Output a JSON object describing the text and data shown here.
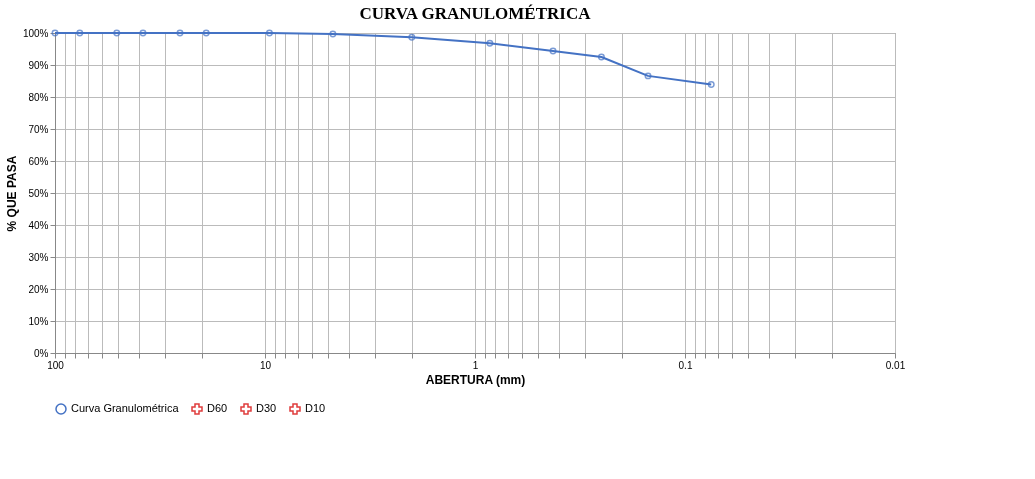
{
  "chart_data": {
    "type": "line",
    "title": "CURVA GRANULOMÉTRICA",
    "xlabel": "ABERTURA (mm)",
    "ylabel": "% QUE PASA",
    "x": [
      100,
      76.2,
      50.8,
      38.1,
      25.4,
      19.05,
      9.525,
      4.75,
      2.0,
      0.85,
      0.425,
      0.25,
      0.15,
      0.075
    ],
    "series": [
      {
        "name": "Curva Granulométrica",
        "color": "#4472c4",
        "marker": "circle",
        "values": [
          100,
          100,
          100,
          100,
          100,
          100,
          100,
          99.7,
          98.7,
          96.8,
          94.4,
          92.5,
          86.6,
          83.9
        ]
      },
      {
        "name": "D60",
        "color": "#e03c3c",
        "marker": "cross",
        "values": [
          null,
          null,
          null,
          null,
          null,
          null,
          null,
          null,
          null,
          null,
          null,
          null,
          null,
          null
        ]
      },
      {
        "name": "D30",
        "color": "#e03c3c",
        "marker": "cross",
        "values": [
          null,
          null,
          null,
          null,
          null,
          null,
          null,
          null,
          null,
          null,
          null,
          null,
          null,
          null
        ]
      },
      {
        "name": "D10",
        "color": "#e03c3c",
        "marker": "cross",
        "values": [
          null,
          null,
          null,
          null,
          null,
          null,
          null,
          null,
          null,
          null,
          null,
          null,
          null,
          null
        ]
      }
    ],
    "log": "x",
    "xlim": [
      100,
      0.01
    ],
    "xticks": [
      100,
      {
        "value": 90,
        "label": null
      },
      {
        "value": 80,
        "label": null
      },
      {
        "value": 70,
        "label": null
      },
      {
        "value": 60,
        "label": null
      },
      {
        "value": 50,
        "label": null
      },
      {
        "value": 40,
        "label": null
      },
      {
        "value": 30,
        "label": null
      },
      {
        "value": 20,
        "label": null
      },
      10,
      {
        "value": 9,
        "label": null
      },
      {
        "value": 8,
        "label": null
      },
      {
        "value": 7,
        "label": null
      },
      {
        "value": 6,
        "label": null
      },
      {
        "value": 5,
        "label": null
      },
      {
        "value": 4,
        "label": null
      },
      {
        "value": 3,
        "label": null
      },
      {
        "value": 2,
        "label": null
      },
      1,
      {
        "value": 0.9,
        "label": null
      },
      {
        "value": 0.8,
        "label": null
      },
      {
        "value": 0.7,
        "label": null
      },
      {
        "value": 0.6,
        "label": null
      },
      {
        "value": 0.5,
        "label": null
      },
      {
        "value": 0.4,
        "label": null
      },
      {
        "value": 0.3,
        "label": null
      },
      {
        "value": 0.2,
        "label": null
      },
      0.1,
      {
        "value": 0.09,
        "label": null
      },
      {
        "value": 0.08,
        "label": null
      },
      {
        "value": 0.07,
        "label": null
      },
      {
        "value": 0.06,
        "label": null
      },
      {
        "value": 0.05,
        "label": null
      },
      {
        "value": 0.04,
        "label": null
      },
      {
        "value": 0.03,
        "label": null
      },
      {
        "value": 0.02,
        "label": null
      },
      0.01
    ],
    "ylim": [
      0,
      100
    ],
    "yticks": [
      {
        "value": 0,
        "label": "0%"
      },
      {
        "value": 10,
        "label": "10%"
      },
      {
        "value": 20,
        "label": "20%"
      },
      {
        "value": 30,
        "label": "30%"
      },
      {
        "value": 40,
        "label": "40%"
      },
      {
        "value": 50,
        "label": "50%"
      },
      {
        "value": 60,
        "label": "60%"
      },
      {
        "value": 70,
        "label": "70%"
      },
      {
        "value": 80,
        "label": "80%"
      },
      {
        "value": 90,
        "label": "90%"
      },
      {
        "value": 100,
        "label": "100%"
      }
    ],
    "grid": true,
    "legend": "bottom",
    "line_style": "solid"
  }
}
